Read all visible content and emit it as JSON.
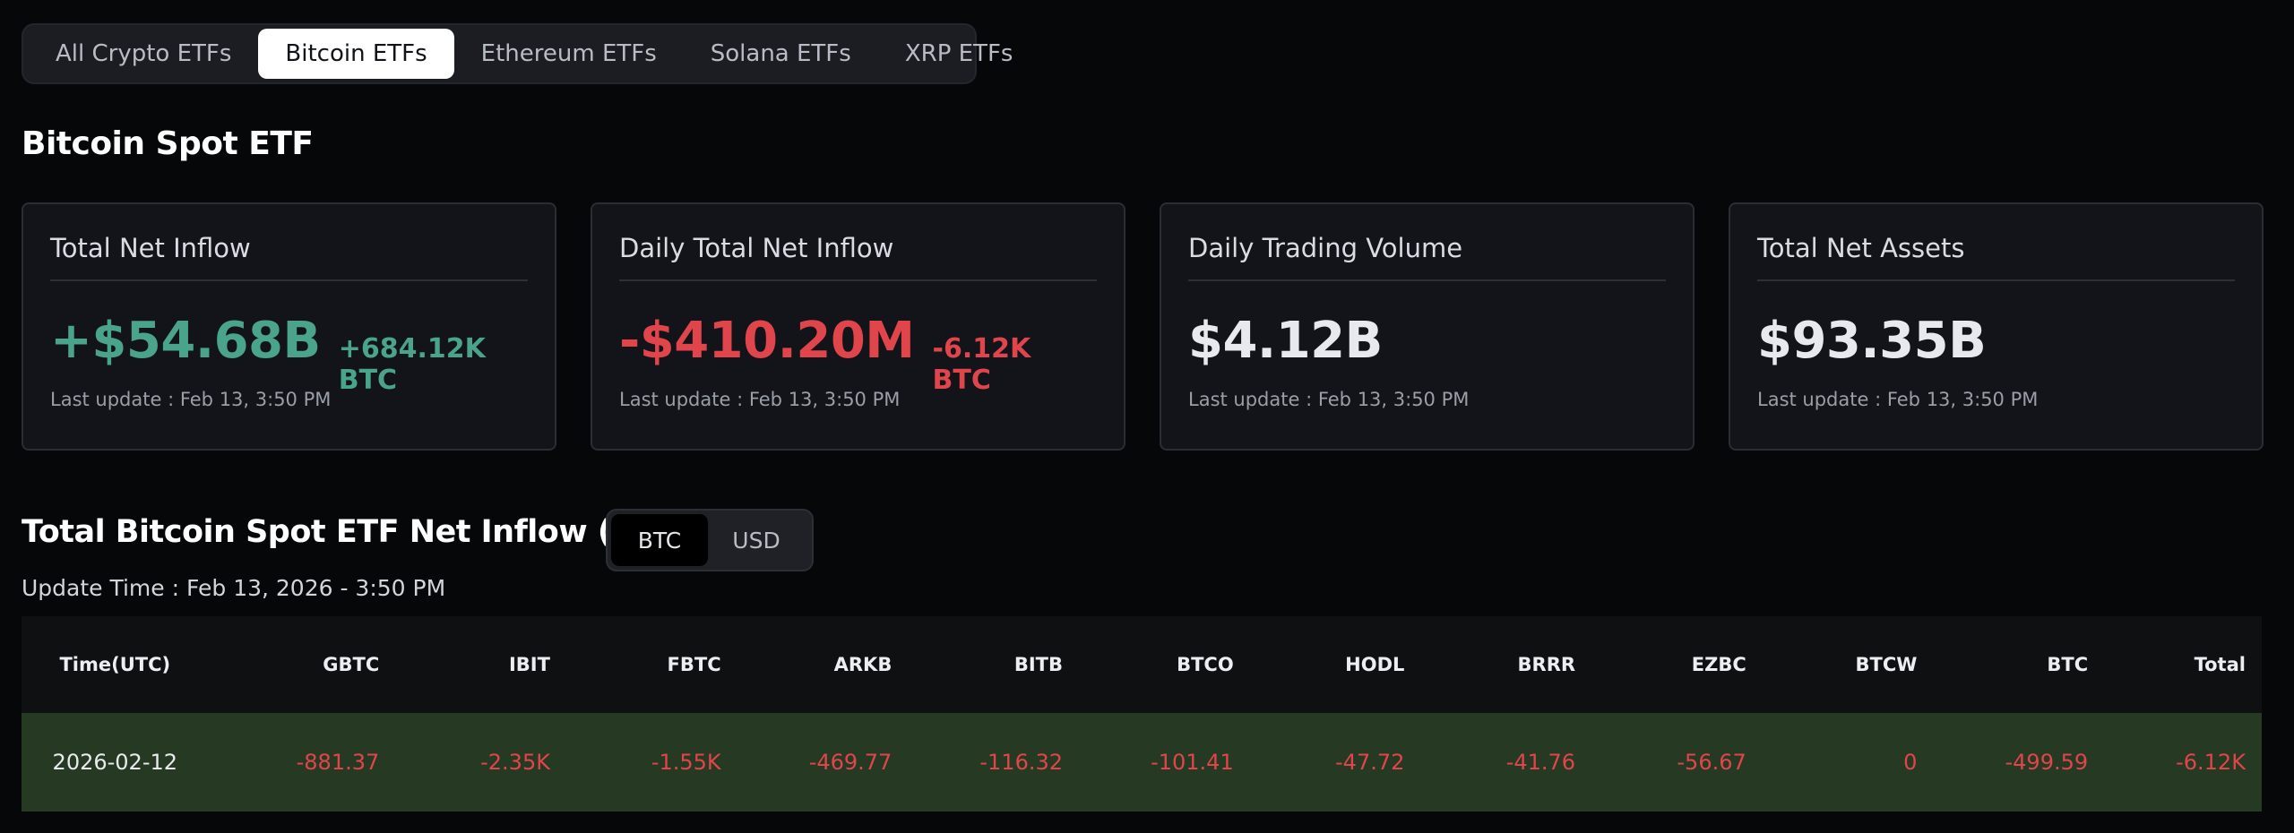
{
  "tabs": [
    {
      "label": "All Crypto ETFs",
      "active": false
    },
    {
      "label": "Bitcoin ETFs",
      "active": true
    },
    {
      "label": "Ethereum ETFs",
      "active": false
    },
    {
      "label": "Solana ETFs",
      "active": false
    },
    {
      "label": "XRP ETFs",
      "active": false
    }
  ],
  "section_title": "Bitcoin Spot ETF",
  "cards": [
    {
      "title": "Total Net Inflow",
      "value": "+$54.68B",
      "sub": "+684.12K BTC",
      "updated": "Last update : Feb 13, 3:50 PM",
      "tone": "positive"
    },
    {
      "title": "Daily Total Net Inflow",
      "value": "-$410.20M",
      "sub": "-6.12K BTC",
      "updated": "Last update : Feb 13, 3:50 PM",
      "tone": "negative"
    },
    {
      "title": "Daily Trading Volume",
      "value": "$4.12B",
      "sub": "",
      "updated": "Last update : Feb 13, 3:50 PM",
      "tone": "neutral"
    },
    {
      "title": "Total Net Assets",
      "value": "$93.35B",
      "sub": "",
      "updated": "Last update : Feb 13, 3:50 PM",
      "tone": "neutral"
    }
  ],
  "inflow": {
    "title": "Total Bitcoin Spot ETF Net Inflow (BTC)",
    "units": [
      {
        "label": "BTC",
        "active": true
      },
      {
        "label": "USD",
        "active": false
      }
    ],
    "update_time": "Update Time : Feb 13, 2026 - 3:50 PM"
  },
  "table": {
    "headers": [
      "Time(UTC)",
      "GBTC",
      "IBIT",
      "FBTC",
      "ARKB",
      "BITB",
      "BTCO",
      "HODL",
      "BRRR",
      "EZBC",
      "BTCW",
      "BTC",
      "Total"
    ],
    "rows": [
      [
        "2026-02-12",
        "-881.37",
        "-2.35K",
        "-1.55K",
        "-469.77",
        "-116.32",
        "-101.41",
        "-47.72",
        "-41.76",
        "-56.67",
        "0",
        "-499.59",
        "-6.12K"
      ]
    ]
  },
  "colors": {
    "positive": "#4aa38b",
    "negative": "#e0454b",
    "row_highlight": "#263923",
    "background": "#060709"
  }
}
